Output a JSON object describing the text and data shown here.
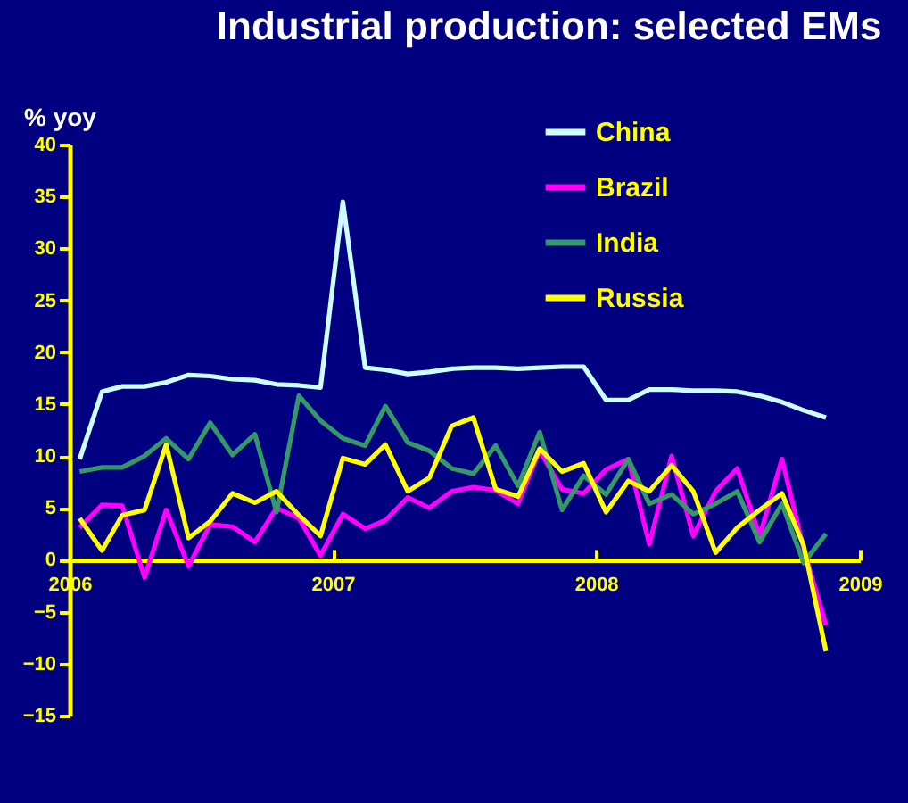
{
  "chart_data": {
    "type": "line",
    "title": "Industrial production: selected EMs",
    "ylabel": "% yoy",
    "x": [
      "2006-01-15",
      "2006-02-15",
      "2006-03-15",
      "2006-04-15",
      "2006-05-15",
      "2006-06-15",
      "2006-07-15",
      "2006-08-15",
      "2006-09-15",
      "2006-10-15",
      "2006-11-15",
      "2006-12-15",
      "2007-01-15",
      "2007-02-15",
      "2007-03-15",
      "2007-04-15",
      "2007-05-15",
      "2007-06-15",
      "2007-07-15",
      "2007-08-15",
      "2007-09-15",
      "2007-10-15",
      "2007-11-15",
      "2007-12-15",
      "2008-01-15",
      "2008-02-15",
      "2008-03-15",
      "2008-04-15",
      "2008-05-15",
      "2008-06-15",
      "2008-07-15",
      "2008-08-15",
      "2008-09-15",
      "2008-10-15",
      "2008-11-15"
    ],
    "series": [
      {
        "name": "China",
        "color": "#ccffff",
        "values": [
          9.7,
          16.2,
          16.7,
          16.7,
          17.1,
          17.8,
          17.7,
          17.4,
          17.3,
          16.9,
          16.8,
          16.6,
          34.5,
          18.5,
          18.3,
          17.9,
          18.1,
          18.4,
          18.5,
          18.5,
          18.4,
          18.5,
          18.6,
          18.6,
          15.4,
          15.4,
          16.4,
          16.4,
          16.3,
          16.3,
          16.2,
          15.8,
          15.2,
          14.4,
          13.7
        ]
      },
      {
        "name": "Brazil",
        "color": "#ff00ff",
        "values": [
          3.1,
          5.3,
          5.2,
          -1.7,
          4.8,
          -0.6,
          3.4,
          3.2,
          1.7,
          5.0,
          4.0,
          0.4,
          4.4,
          3.0,
          3.8,
          6.0,
          5.0,
          6.6,
          7.0,
          6.7,
          5.4,
          10.5,
          6.8,
          6.4,
          8.7,
          9.7,
          1.5,
          10.0,
          2.3,
          6.6,
          8.8,
          2.3,
          9.7,
          1.1,
          -6.3
        ]
      },
      {
        "name": "India",
        "color": "#339966",
        "values": [
          8.5,
          8.9,
          8.9,
          10.0,
          11.7,
          9.7,
          13.2,
          10.1,
          12.1,
          4.6,
          15.8,
          13.4,
          11.7,
          11.0,
          14.8,
          11.3,
          10.5,
          8.8,
          8.3,
          11.0,
          7.1,
          12.3,
          4.8,
          8.1,
          6.3,
          9.7,
          5.4,
          6.3,
          4.4,
          5.4,
          6.6,
          1.7,
          5.4,
          -0.3,
          2.5
        ]
      },
      {
        "name": "Russia",
        "color": "#ffff00",
        "values": [
          4.0,
          0.9,
          4.3,
          4.8,
          11.1,
          2.1,
          3.7,
          6.4,
          5.5,
          6.6,
          4.3,
          2.3,
          9.8,
          9.2,
          11.1,
          6.6,
          7.9,
          12.9,
          13.7,
          6.8,
          6.1,
          10.7,
          8.5,
          9.3,
          4.6,
          7.6,
          6.6,
          9.1,
          6.6,
          0.7,
          3.1,
          4.8,
          6.4,
          1.4,
          -8.8
        ]
      }
    ],
    "xlim": [
      "2006",
      "2009"
    ],
    "xticks": [
      "2006",
      "2007",
      "2008",
      "2009"
    ],
    "ylim": [
      -15,
      40
    ],
    "yticks": [
      -15,
      -10,
      -5,
      0,
      5,
      10,
      15,
      20,
      25,
      30,
      35,
      40
    ],
    "legend": "top right",
    "grid": false
  }
}
